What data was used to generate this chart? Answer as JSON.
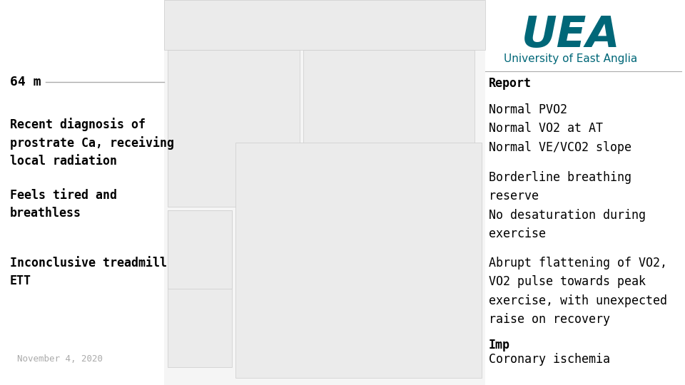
{
  "background_color": "#ffffff",
  "left_column": {
    "age_line": "64 m",
    "items": [
      "Recent diagnosis of\nprostrate Ca, receiving\nlocal radiation",
      "Feels tired and\nbreathless",
      "Inconclusive treadmill\nETT"
    ],
    "footer": "November 4, 2020"
  },
  "right_column": {
    "report_title": "Report",
    "section1": "Normal PVO2\nNormal VO2 at AT\nNormal VE/VCO2 slope",
    "section2": "Borderline breathing\nreserve\nNo desaturation during\nexercise",
    "section3": "Abrupt flattening of VO2,\nVO2 pulse towards peak\nexercise, with unexpected\nraise on recovery",
    "section4_bold": "Imp",
    "section4_normal": "Coronary ischemia"
  },
  "uea_text": "UEA",
  "uea_subtitle": "University of East Anglia",
  "uea_color": "#006778",
  "divider_color": "#aaaaaa",
  "text_color": "#000000",
  "footer_color": "#aaaaaa",
  "age_font_size": 13,
  "item_font_size": 12,
  "footer_font_size": 9,
  "report_title_font_size": 12,
  "report_item_font_size": 12,
  "uea_font_size": 44,
  "uea_subtitle_font_size": 11
}
